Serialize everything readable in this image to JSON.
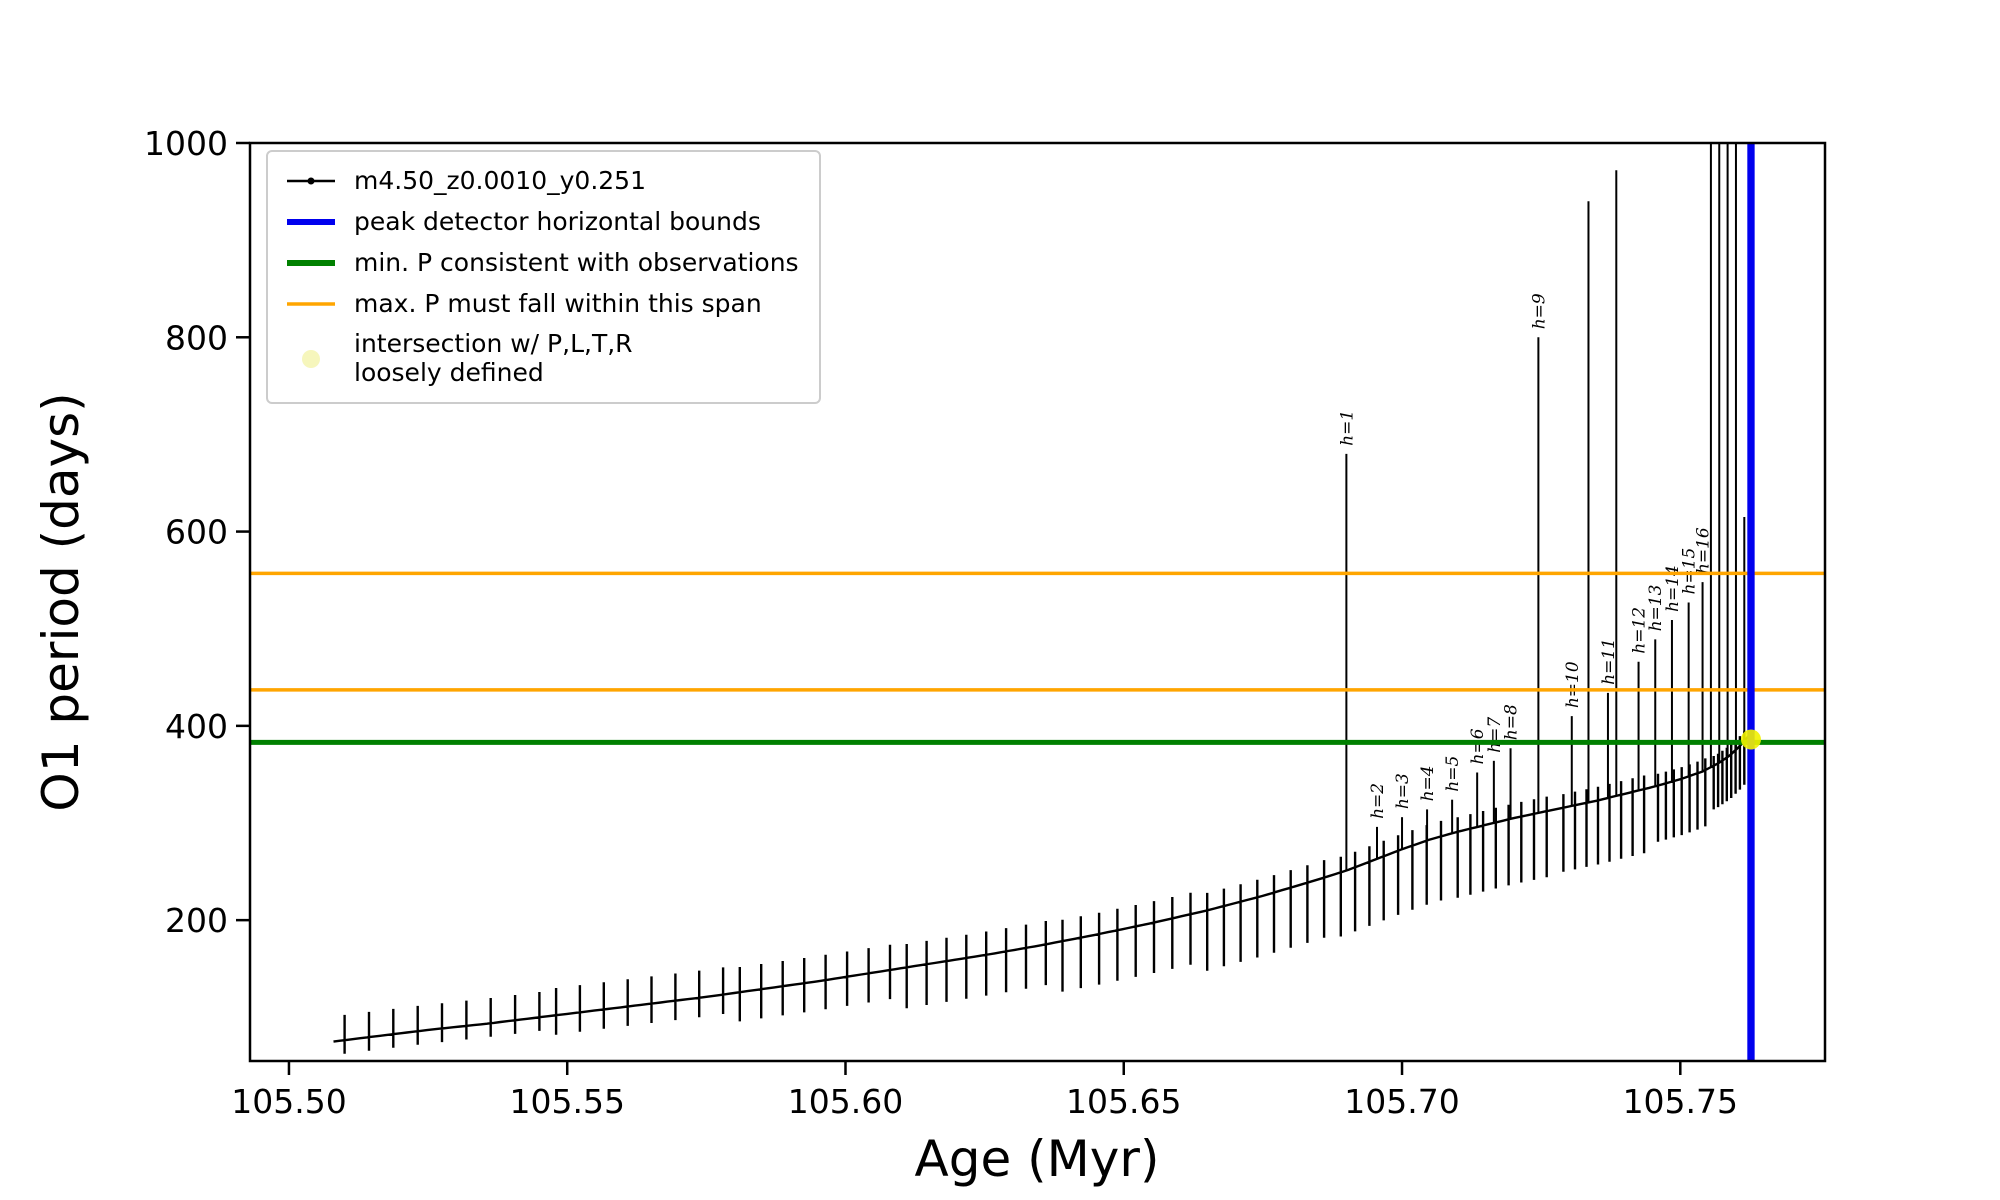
{
  "chart_data": {
    "type": "line",
    "title": "",
    "xlabel": "Age (Myr)",
    "ylabel": "O1 period (days)",
    "xlim": [
      105.493,
      105.776
    ],
    "ylim": [
      55,
      1000
    ],
    "grid": false,
    "legend_position": "upper left",
    "colors": {
      "series": "#000000",
      "peak_bounds": "#0000ee",
      "min_p": "#008000",
      "max_p": "#ffa500",
      "intersection": "#f2f200",
      "intersection_legend": "#f6f6bc"
    },
    "x_ticks": [
      {
        "v": 105.5,
        "label": "105.50"
      },
      {
        "v": 105.55,
        "label": "105.55"
      },
      {
        "v": 105.6,
        "label": "105.60"
      },
      {
        "v": 105.65,
        "label": "105.65"
      },
      {
        "v": 105.7,
        "label": "105.70"
      },
      {
        "v": 105.75,
        "label": "105.75"
      }
    ],
    "y_ticks": [
      {
        "v": 200,
        "label": "200"
      },
      {
        "v": 400,
        "label": "400"
      },
      {
        "v": 600,
        "label": "600"
      },
      {
        "v": 800,
        "label": "800"
      },
      {
        "v": 1000,
        "label": "1000"
      }
    ],
    "series": {
      "name": "m4.50_z0.0010_y0.251",
      "baseline": [
        [
          105.508,
          75
        ],
        [
          105.515,
          80
        ],
        [
          105.525,
          87
        ],
        [
          105.535,
          93
        ],
        [
          105.545,
          100
        ],
        [
          105.555,
          107
        ],
        [
          105.565,
          114
        ],
        [
          105.575,
          121
        ],
        [
          105.585,
          129
        ],
        [
          105.595,
          137
        ],
        [
          105.605,
          146
        ],
        [
          105.615,
          155
        ],
        [
          105.625,
          164
        ],
        [
          105.635,
          174
        ],
        [
          105.645,
          185
        ],
        [
          105.655,
          197
        ],
        [
          105.665,
          210
        ],
        [
          105.675,
          225
        ],
        [
          105.685,
          242
        ],
        [
          105.69,
          251
        ],
        [
          105.695,
          262
        ],
        [
          105.7,
          273
        ],
        [
          105.705,
          283
        ],
        [
          105.71,
          291
        ],
        [
          105.715,
          298
        ],
        [
          105.72,
          305
        ],
        [
          105.725,
          311
        ],
        [
          105.73,
          317
        ],
        [
          105.735,
          323
        ],
        [
          105.74,
          330
        ],
        [
          105.745,
          337
        ],
        [
          105.75,
          345
        ],
        [
          105.754,
          353
        ],
        [
          105.757,
          362
        ],
        [
          105.759,
          370
        ],
        [
          105.761,
          381
        ],
        [
          105.7625,
          391
        ]
      ],
      "pulse_groups": [
        {
          "x0": 105.51,
          "x1": 105.545,
          "n": 9,
          "up": 26,
          "down": 14
        },
        {
          "x0": 105.548,
          "x1": 105.578,
          "n": 8,
          "up": 28,
          "down": 20
        },
        {
          "x0": 105.581,
          "x1": 105.608,
          "n": 8,
          "up": 26,
          "down": 30
        },
        {
          "x0": 105.611,
          "x1": 105.636,
          "n": 8,
          "up": 24,
          "down": 42
        },
        {
          "x0": 105.639,
          "x1": 105.662,
          "n": 8,
          "up": 22,
          "down": 52
        },
        {
          "x0": 105.665,
          "x1": 105.686,
          "n": 8,
          "up": 18,
          "down": 62
        },
        {
          "x0": 105.689,
          "x1": 105.707,
          "n": 8,
          "up": 16,
          "down": 66
        },
        {
          "x0": 105.71,
          "x1": 105.726,
          "n": 8,
          "up": 15,
          "down": 68
        },
        {
          "x0": 105.729,
          "x1": 105.7435,
          "n": 8,
          "up": 14,
          "down": 66
        },
        {
          "x0": 105.746,
          "x1": 105.7545,
          "n": 7,
          "up": 12,
          "down": 58
        },
        {
          "x0": 105.756,
          "x1": 105.7615,
          "n": 8,
          "up": 10,
          "down": 45
        }
      ],
      "spikes": [
        {
          "x": 105.69,
          "top": 680,
          "label": "h=1"
        },
        {
          "x": 105.6955,
          "top": 296,
          "label": "h=2"
        },
        {
          "x": 105.7,
          "top": 306,
          "label": "h=3"
        },
        {
          "x": 105.7045,
          "top": 314,
          "label": "h=4"
        },
        {
          "x": 105.709,
          "top": 324,
          "label": "h=5"
        },
        {
          "x": 105.7135,
          "top": 352,
          "label": "h=6"
        },
        {
          "x": 105.7165,
          "top": 364,
          "label": "h=7"
        },
        {
          "x": 105.7195,
          "top": 377,
          "label": "h=8"
        },
        {
          "x": 105.7245,
          "top": 800,
          "label": "h=9"
        },
        {
          "x": 105.7305,
          "top": 410,
          "label": "h=10"
        },
        {
          "x": 105.7335,
          "top": 940,
          "label": ""
        },
        {
          "x": 105.737,
          "top": 434,
          "label": "h=11"
        },
        {
          "x": 105.7385,
          "top": 972,
          "label": ""
        },
        {
          "x": 105.7425,
          "top": 466,
          "label": "h=12"
        },
        {
          "x": 105.7455,
          "top": 489,
          "label": "h=13"
        },
        {
          "x": 105.7485,
          "top": 509,
          "label": "h=14"
        },
        {
          "x": 105.7515,
          "top": 527,
          "label": "h=15"
        },
        {
          "x": 105.754,
          "top": 548,
          "label": "h=16"
        },
        {
          "x": 105.7555,
          "top": 1000,
          "label": ""
        },
        {
          "x": 105.757,
          "top": 1000,
          "label": ""
        },
        {
          "x": 105.7585,
          "top": 1000,
          "label": ""
        },
        {
          "x": 105.76,
          "top": 1000,
          "label": ""
        },
        {
          "x": 105.7615,
          "top": 615,
          "label": ""
        }
      ]
    },
    "hlines": [
      {
        "y": 383,
        "color_key": "min_p",
        "width": 5,
        "name": "min-p-line"
      },
      {
        "y": 437,
        "color_key": "max_p",
        "width": 3.5,
        "name": "max-p-span-lower-line"
      },
      {
        "y": 557,
        "color_key": "max_p",
        "width": 3.5,
        "name": "max-p-span-upper-line"
      }
    ],
    "vlines": [
      {
        "x": 105.7624,
        "color_key": "peak_bounds",
        "width": 4,
        "name": "peak-detector-left-bound"
      },
      {
        "x": 105.763,
        "color_key": "peak_bounds",
        "width": 4,
        "name": "peak-detector-right-bound"
      }
    ],
    "intersection_point": {
      "x": 105.7627,
      "y": 386,
      "r": 10
    },
    "legend": [
      {
        "label": "m4.50_z0.0010_y0.251"
      },
      {
        "label": "peak detector horizontal bounds"
      },
      {
        "label": "min. P consistent with observations"
      },
      {
        "label": "max. P must fall within this span"
      },
      {
        "label": "intersection w/ P,L,T,R\nloosely defined"
      }
    ]
  }
}
